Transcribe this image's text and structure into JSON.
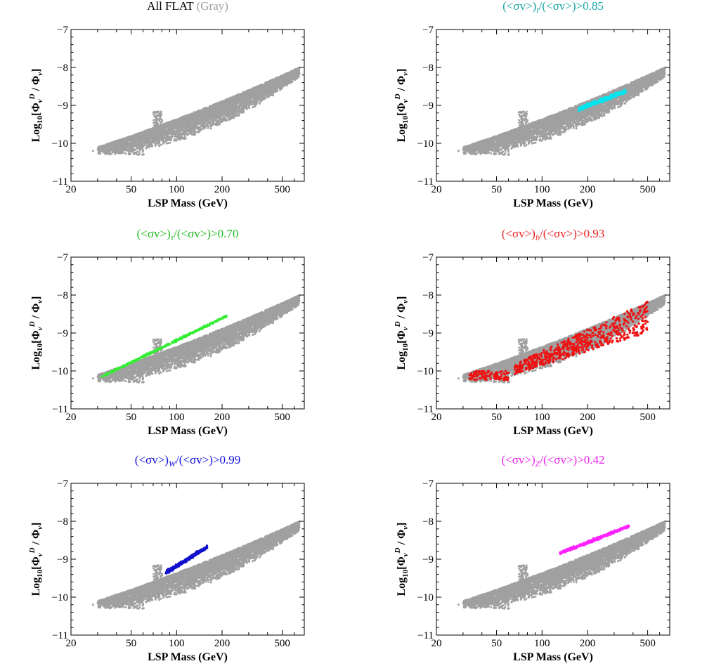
{
  "chart_data": [
    {
      "type": "scatter",
      "title_main": "All FLAT",
      "title_paren": "(Gray)",
      "title_color": "#000000",
      "title_paren_color": "#a0a0a0",
      "xlabel": "LSP Mass (GeV)",
      "ylabel": "Log10[ΦνD / Φν]",
      "xscale": "log",
      "xlim": [
        20,
        700
      ],
      "ylim": [
        -11,
        -7
      ],
      "xticks": [
        20,
        50,
        100,
        200,
        500
      ],
      "yticks": [
        -7,
        -8,
        -9,
        -10,
        -11
      ],
      "grid": false,
      "series": [
        {
          "role": "all",
          "color": "#a0a0a0"
        }
      ]
    },
    {
      "type": "scatter",
      "title_parts": {
        "open": "(<σv>)",
        "sub": "t",
        "close": "/(<σv>)>0.85"
      },
      "title_color": "#1aa5a5",
      "xlabel": "LSP Mass (GeV)",
      "ylabel": "Log10[ΦνD / Φν]",
      "xscale": "log",
      "xlim": [
        20,
        700
      ],
      "ylim": [
        -11,
        -7
      ],
      "xticks": [
        20,
        50,
        100,
        200,
        500
      ],
      "yticks": [
        -7,
        -8,
        -9,
        -10,
        -11
      ],
      "grid": false,
      "series": [
        {
          "role": "all",
          "color": "#a0a0a0"
        },
        {
          "role": "highlight",
          "color": "#00e5ee",
          "band": {
            "x": [
              175,
              360
            ],
            "y": [
              -9.1,
              -8.62
            ],
            "width": 0.12
          }
        }
      ]
    },
    {
      "type": "scatter",
      "title_parts": {
        "open": "(<σv>)",
        "sub": "τ",
        "close": "/(<σv>)>0.70"
      },
      "title_color": "#22bb22",
      "xlabel": "LSP Mass (GeV)",
      "ylabel": "Log10[ΦνD / Φν]",
      "xscale": "log",
      "xlim": [
        20,
        700
      ],
      "ylim": [
        -11,
        -7
      ],
      "xticks": [
        20,
        50,
        100,
        200,
        500
      ],
      "yticks": [
        -7,
        -8,
        -9,
        -10,
        -11
      ],
      "grid": false,
      "series": [
        {
          "role": "all",
          "color": "#a0a0a0"
        },
        {
          "role": "highlight",
          "color": "#33ee33",
          "band": {
            "x": [
              32,
              215
            ],
            "y": [
              -10.15,
              -8.55
            ],
            "width": 0.06
          }
        }
      ]
    },
    {
      "type": "scatter",
      "title_parts": {
        "open": "(<σv>)",
        "sub": "b",
        "close": "/(<σv>)>0.93"
      },
      "title_color": "#ee2222",
      "xlabel": "LSP Mass (GeV)",
      "ylabel": "Log10[ΦνD / Φν]",
      "xscale": "log",
      "xlim": [
        20,
        700
      ],
      "ylim": [
        -11,
        -7
      ],
      "xticks": [
        20,
        50,
        100,
        200,
        500
      ],
      "yticks": [
        -7,
        -8,
        -9,
        -10,
        -11
      ],
      "grid": false,
      "series": [
        {
          "role": "all",
          "color": "#a0a0a0"
        },
        {
          "role": "highlight",
          "color": "#ee1111",
          "clusters": [
            {
              "x": [
                33,
                60
              ],
              "y": [
                -10.25,
                -10.0
              ]
            },
            {
              "x": [
                65,
                500
              ],
              "y": [
                -10.0,
                -8.7
              ],
              "width": 0.55
            }
          ]
        }
      ]
    },
    {
      "type": "scatter",
      "title_parts": {
        "open": "(<σv>)",
        "sub": "W",
        "close": "/(<σv>)>0.99"
      },
      "title_color": "#1111dd",
      "xlabel": "LSP Mass (GeV)",
      "ylabel": "Log10[ΦνD / Φν]",
      "xscale": "log",
      "xlim": [
        20,
        700
      ],
      "ylim": [
        -11,
        -7
      ],
      "xticks": [
        20,
        50,
        100,
        200,
        500
      ],
      "yticks": [
        -7,
        -8,
        -9,
        -10,
        -11
      ],
      "grid": false,
      "series": [
        {
          "role": "all",
          "color": "#a0a0a0"
        },
        {
          "role": "highlight",
          "color": "#1111cc",
          "band": {
            "x": [
              85,
              160
            ],
            "y": [
              -9.35,
              -8.68
            ],
            "width": 0.1
          }
        }
      ]
    },
    {
      "type": "scatter",
      "title_parts": {
        "open": "(<σv>)",
        "sub": "Z",
        "close": "/(<σv>)>0.42"
      },
      "title_color": "#ee22ee",
      "xlabel": "LSP Mass (GeV)",
      "ylabel": "Log10[ΦνD / Φν]",
      "xscale": "log",
      "xlim": [
        20,
        700
      ],
      "ylim": [
        -11,
        -7
      ],
      "xticks": [
        20,
        50,
        100,
        200,
        500
      ],
      "yticks": [
        -7,
        -8,
        -9,
        -10,
        -11
      ],
      "grid": false,
      "series": [
        {
          "role": "all",
          "color": "#a0a0a0"
        },
        {
          "role": "highlight",
          "color": "#ff22ff",
          "band": {
            "x": [
              130,
              380
            ],
            "y": [
              -8.85,
              -8.12
            ],
            "width": 0.09
          }
        }
      ]
    }
  ]
}
